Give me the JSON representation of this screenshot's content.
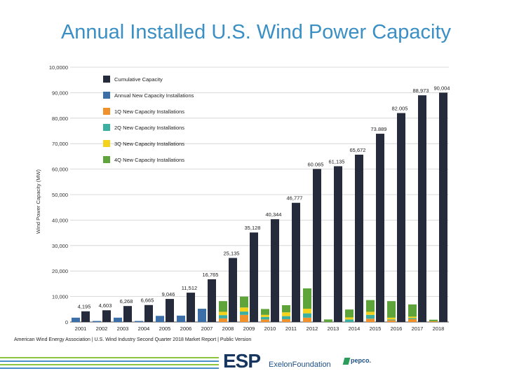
{
  "page_title": "Annual Installed U.S. Wind Power Capacity",
  "source_note": "American Wind Energy Association  |  U.S. Wind Industry Second Quarter 2018 Market Report  |  Public Version",
  "logos": {
    "esp": "ESP",
    "exelon": "ExelonFoundation",
    "pepco": "pepco."
  },
  "colors": {
    "cumulative": "#252b3a",
    "annual_new": "#3c6fa8",
    "q1": "#f0912b",
    "q2": "#3aafa2",
    "q3": "#f5d21c",
    "q4": "#5fa43a",
    "title": "#3a8fc4"
  },
  "chart_data": {
    "type": "bar",
    "ylabel": "Wind Power Capacity (MW)",
    "ylim": [
      0,
      100000
    ],
    "yticks": [
      0,
      10000,
      20000,
      30000,
      40000,
      50000,
      60000,
      70000,
      80000,
      90000,
      100000
    ],
    "ytick_labels": [
      "0",
      "10,000",
      "20,000",
      "30,000",
      "40,000",
      "50,000",
      "60,000",
      "70,000",
      "80,000",
      "90,000",
      "10,0000"
    ],
    "grid": true,
    "legend_position": "top-left",
    "categories": [
      "2001",
      "2002",
      "2003",
      "2004",
      "2005",
      "2006",
      "2007",
      "2008",
      "2009",
      "2010",
      "2011",
      "2012",
      "2013",
      "2014",
      "2015",
      "2016",
      "2017",
      "2018"
    ],
    "series": [
      {
        "name": "Cumulative Capacity",
        "key": "cumulative",
        "values": [
          4195,
          4603,
          6268,
          6665,
          9046,
          11512,
          16765,
          25135,
          35128,
          40344,
          46777,
          60065,
          61135,
          65672,
          73889,
          82005,
          88973,
          90004
        ],
        "labels": [
          "4,195",
          "4,603",
          "6,268",
          "6,665",
          "9,046",
          "11,512",
          "16,765",
          "25,135",
          "35,128",
          "40,344",
          "46,777",
          "60.065",
          "61,135",
          "65,672",
          "73.889",
          "82.005",
          "88,973",
          "90,004"
        ]
      },
      {
        "name": "Annual New Capacity Installations",
        "key": "annual_new",
        "values": [
          1700,
          400,
          1700,
          400,
          2400,
          2500,
          5200,
          0,
          0,
          0,
          0,
          0,
          0,
          0,
          0,
          0,
          0,
          0
        ]
      },
      {
        "name": "1Q New Capacity Installations",
        "key": "q1",
        "values": [
          0,
          0,
          0,
          0,
          0,
          0,
          0,
          1400,
          2800,
          1000,
          1100,
          1700,
          0,
          0,
          1300,
          700,
          1100,
          300
        ]
      },
      {
        "name": "2Q New Capacity Installations",
        "key": "q2",
        "values": [
          0,
          0,
          0,
          0,
          0,
          0,
          0,
          1300,
          1300,
          1000,
          1200,
          1700,
          0,
          1000,
          1500,
          300,
          400,
          0
        ]
      },
      {
        "name": "3Q New Capacity Installations",
        "key": "q3",
        "values": [
          0,
          0,
          0,
          0,
          0,
          0,
          0,
          1300,
          1600,
          800,
          1500,
          1800,
          0,
          800,
          1200,
          700,
          600,
          0
        ]
      },
      {
        "name": "4Q New Capacity Installations",
        "key": "q4",
        "values": [
          0,
          0,
          0,
          0,
          0,
          0,
          0,
          4200,
          4300,
          2300,
          2800,
          8000,
          1000,
          3100,
          4600,
          6500,
          4800,
          600
        ]
      }
    ]
  }
}
